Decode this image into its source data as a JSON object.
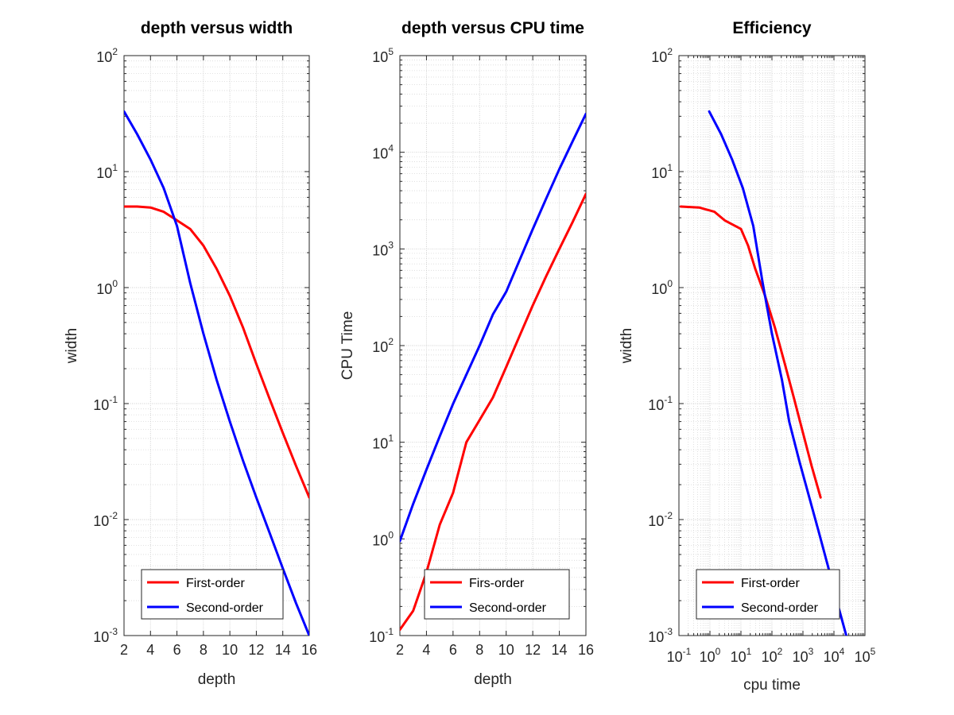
{
  "chart_data": [
    {
      "type": "line",
      "title": "depth versus width",
      "xlabel": "depth",
      "ylabel": "width",
      "xscale": "linear",
      "yscale": "log",
      "xlim": [
        2,
        16
      ],
      "ylim": [
        0.001,
        100
      ],
      "xticks": [
        "2",
        "4",
        "6",
        "8",
        "10",
        "12",
        "14",
        "16"
      ],
      "yticks": [
        {
          "base": "10",
          "exp": "-3"
        },
        {
          "base": "10",
          "exp": "-2"
        },
        {
          "base": "10",
          "exp": "-1"
        },
        {
          "base": "10",
          "exp": "0"
        },
        {
          "base": "10",
          "exp": "1"
        },
        {
          "base": "10",
          "exp": "2"
        }
      ],
      "grid": true,
      "legend_position": "bottom",
      "series": [
        {
          "name": "First-order",
          "color": "#ff0000",
          "x": [
            2,
            3,
            4,
            5,
            6,
            7,
            8,
            9,
            10,
            11,
            12,
            13,
            14,
            15,
            16
          ],
          "y": [
            5.0,
            5.0,
            4.9,
            4.5,
            3.8,
            3.2,
            2.3,
            1.45,
            0.85,
            0.45,
            0.22,
            0.11,
            0.056,
            0.029,
            0.0155
          ]
        },
        {
          "name": "Second-order",
          "color": "#0000ff",
          "x": [
            2,
            3,
            4,
            5,
            6,
            7,
            8,
            9,
            10,
            11,
            12,
            13,
            14,
            15,
            16
          ],
          "y": [
            33,
            21,
            12.7,
            7.2,
            3.4,
            1.1,
            0.4,
            0.16,
            0.07,
            0.032,
            0.0155,
            0.0077,
            0.0038,
            0.0019,
            0.001
          ]
        }
      ]
    },
    {
      "type": "line",
      "title": "depth versus CPU time",
      "xlabel": "depth",
      "ylabel": "CPU Time",
      "xscale": "linear",
      "yscale": "log",
      "xlim": [
        2,
        16
      ],
      "ylim": [
        0.1,
        100000
      ],
      "xticks": [
        "2",
        "4",
        "6",
        "8",
        "10",
        "12",
        "14",
        "16"
      ],
      "yticks": [
        {
          "base": "10",
          "exp": "-1"
        },
        {
          "base": "10",
          "exp": "0"
        },
        {
          "base": "10",
          "exp": "1"
        },
        {
          "base": "10",
          "exp": "2"
        },
        {
          "base": "10",
          "exp": "3"
        },
        {
          "base": "10",
          "exp": "4"
        },
        {
          "base": "10",
          "exp": "5"
        }
      ],
      "grid": true,
      "legend_position": "bottom",
      "series": [
        {
          "name": "Firs-order",
          "color": "#ff0000",
          "x": [
            2,
            3,
            4,
            5,
            6,
            7,
            8,
            9,
            10,
            11,
            12,
            13,
            14,
            15,
            16
          ],
          "y": [
            0.115,
            0.18,
            0.45,
            1.4,
            3.0,
            10,
            17,
            29,
            60,
            125,
            260,
            520,
            1000,
            1900,
            3700
          ]
        },
        {
          "name": "Second-order",
          "color": "#0000ff",
          "x": [
            2,
            3,
            4,
            5,
            6,
            7,
            8,
            9,
            10,
            11,
            12,
            13,
            14,
            15,
            16
          ],
          "y": [
            0.95,
            2.3,
            5.2,
            11.5,
            25,
            50,
            100,
            210,
            360,
            760,
            1600,
            3300,
            6700,
            13000,
            25000
          ]
        }
      ]
    },
    {
      "type": "line",
      "title": "Efficiency",
      "xlabel": "cpu time",
      "ylabel": "width",
      "xscale": "log",
      "yscale": "log",
      "xlim": [
        0.1,
        100000
      ],
      "ylim": [
        0.001,
        100
      ],
      "xticks": [
        {
          "base": "10",
          "exp": "-1"
        },
        {
          "base": "10",
          "exp": "0"
        },
        {
          "base": "10",
          "exp": "1"
        },
        {
          "base": "10",
          "exp": "2"
        },
        {
          "base": "10",
          "exp": "3"
        },
        {
          "base": "10",
          "exp": "4"
        },
        {
          "base": "10",
          "exp": "5"
        }
      ],
      "yticks": [
        {
          "base": "10",
          "exp": "-3"
        },
        {
          "base": "10",
          "exp": "-2"
        },
        {
          "base": "10",
          "exp": "-1"
        },
        {
          "base": "10",
          "exp": "0"
        },
        {
          "base": "10",
          "exp": "1"
        },
        {
          "base": "10",
          "exp": "2"
        }
      ],
      "grid": true,
      "legend_position": "bottom",
      "series": [
        {
          "name": "First-order",
          "color": "#ff0000",
          "x": [
            0.115,
            0.45,
            1.4,
            3.0,
            10,
            17,
            29,
            60,
            125,
            260,
            520,
            1000,
            1900,
            3700
          ],
          "y": [
            5.0,
            4.9,
            4.5,
            3.8,
            3.2,
            2.3,
            1.45,
            0.85,
            0.45,
            0.22,
            0.11,
            0.056,
            0.029,
            0.0155
          ]
        },
        {
          "name": "Second-order",
          "color": "#0000ff",
          "x": [
            0.95,
            2.3,
            5.2,
            11.5,
            25,
            50,
            100,
            210,
            360,
            760,
            1600,
            3300,
            6700,
            13000,
            25000
          ],
          "y": [
            33,
            21,
            12.7,
            7.2,
            3.4,
            1.1,
            0.4,
            0.16,
            0.07,
            0.032,
            0.0155,
            0.0077,
            0.0038,
            0.0019,
            0.001
          ]
        }
      ]
    }
  ]
}
